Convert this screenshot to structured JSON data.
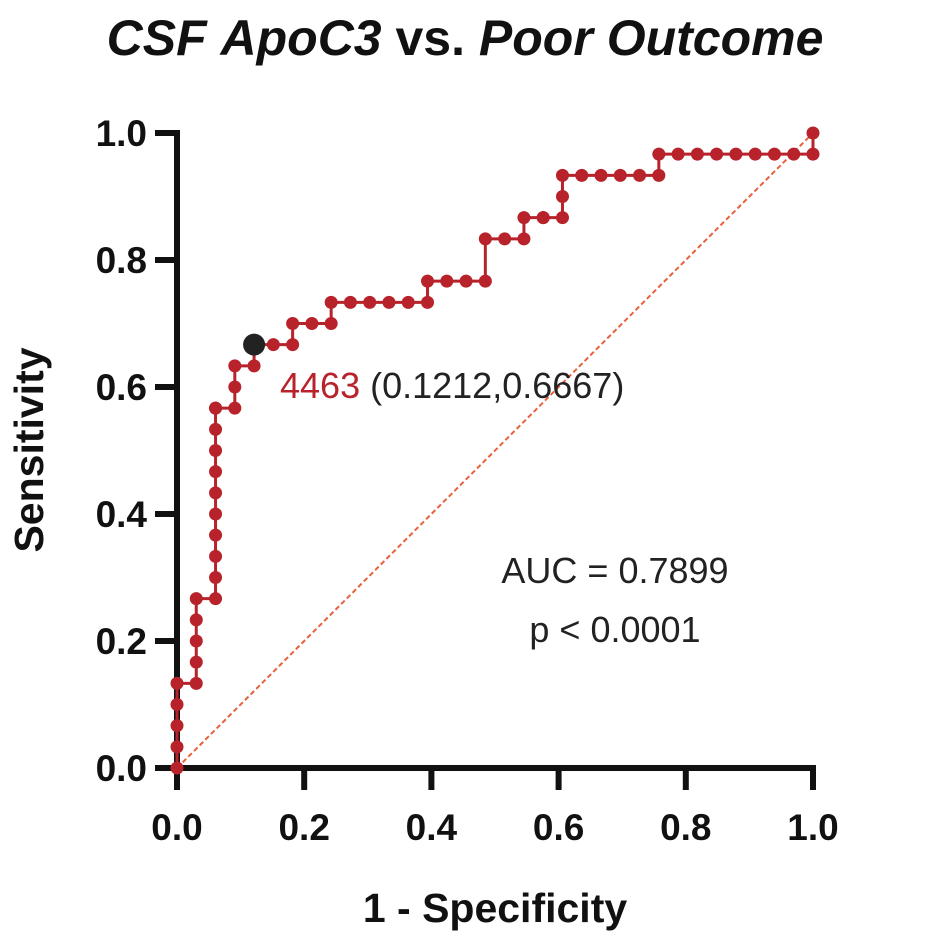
{
  "chart_data": {
    "type": "line",
    "title": "CSF ApoC3 vs. Poor Outcome",
    "title_parts": [
      {
        "text": "CSF ApoC3",
        "italic": true
      },
      {
        "text": " vs. ",
        "italic": false
      },
      {
        "text": "Poor Outcome",
        "italic": true
      }
    ],
    "xlabel": "1 - Specificity",
    "ylabel": "Sensitivity",
    "xlim": [
      0,
      1
    ],
    "ylim": [
      0,
      1
    ],
    "xticks": [
      "0.0",
      "0.2",
      "0.4",
      "0.6",
      "0.8",
      "1.0"
    ],
    "yticks": [
      "0.0",
      "0.2",
      "0.4",
      "0.6",
      "0.8",
      "1.0"
    ],
    "grid": false,
    "series": [
      {
        "name": "ROC curve",
        "color": "#b8232b",
        "x": [
          0,
          0,
          0,
          0,
          0,
          0.0303,
          0.0303,
          0.0303,
          0.0303,
          0.0303,
          0.0606,
          0.0606,
          0.0606,
          0.0606,
          0.0606,
          0.0606,
          0.0606,
          0.0606,
          0.0606,
          0.0606,
          0.0606,
          0.0909,
          0.0909,
          0.0909,
          0.1212,
          0.1212,
          0.1515,
          0.1818,
          0.1818,
          0.2121,
          0.2424,
          0.2424,
          0.2727,
          0.303,
          0.3333,
          0.3636,
          0.3939,
          0.3939,
          0.4242,
          0.4545,
          0.4848,
          0.4848,
          0.5152,
          0.5455,
          0.5455,
          0.5758,
          0.5758,
          0.6061,
          0.6061,
          0.6061,
          0.6364,
          0.6667,
          0.697,
          0.7273,
          0.7576,
          0.7576,
          0.7879,
          0.8182,
          0.8485,
          0.8788,
          0.9091,
          0.9394,
          0.9697,
          1.0,
          1.0
        ],
        "y": [
          0,
          0.0333,
          0.0667,
          0.1,
          0.1333,
          0.1333,
          0.1667,
          0.2,
          0.2333,
          0.2667,
          0.2667,
          0.3,
          0.3333,
          0.3667,
          0.4,
          0.4333,
          0.4667,
          0.5,
          0.5333,
          0.5667,
          0.5667,
          0.5667,
          0.6,
          0.6333,
          0.6333,
          0.6667,
          0.6667,
          0.6667,
          0.7,
          0.7,
          0.7,
          0.7333,
          0.7333,
          0.7333,
          0.7333,
          0.7333,
          0.7333,
          0.7667,
          0.7667,
          0.7667,
          0.7667,
          0.8333,
          0.8333,
          0.8333,
          0.8667,
          0.8667,
          0.8667,
          0.8667,
          0.9,
          0.9333,
          0.9333,
          0.9333,
          0.9333,
          0.9333,
          0.9333,
          0.9667,
          0.9667,
          0.9667,
          0.9667,
          0.9667,
          0.9667,
          0.9667,
          0.9667,
          0.9667,
          1.0
        ]
      },
      {
        "name": "Reference line",
        "color": "#e8603c",
        "style": "dashed",
        "x": [
          0,
          1
        ],
        "y": [
          0,
          1
        ]
      }
    ],
    "highlight_point": {
      "x": 0.1212,
      "y": 0.6667,
      "color": "#222222"
    },
    "annotations": {
      "cutoff_value": "4463",
      "cutoff_coords": "(0.1212,0.6667)",
      "auc": "AUC = 0.7899",
      "p_value": "p < 0.0001"
    }
  }
}
